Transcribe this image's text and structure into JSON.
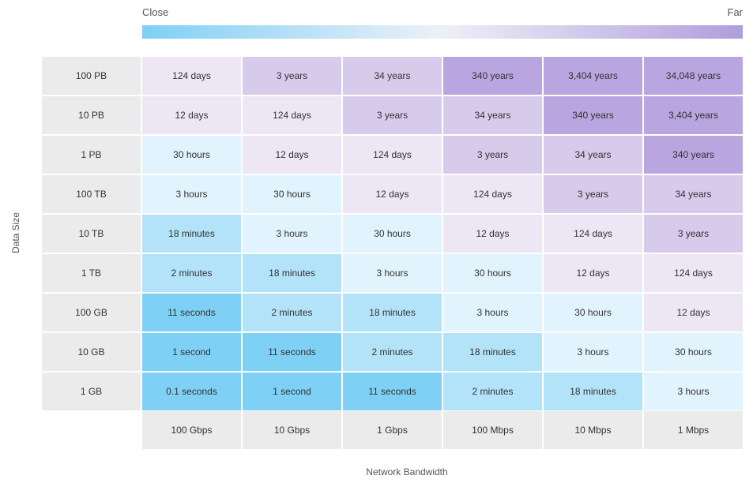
{
  "legend": {
    "low": "Close",
    "high": "Far"
  },
  "y_axis_label": "Data Size",
  "x_axis_label": "Network Bandwidth",
  "table": {
    "row_headers": [
      "100 PB",
      "10 PB",
      "1 PB",
      "100 TB",
      "10 TB",
      "1 TB",
      "100 GB",
      "10 GB",
      "1 GB"
    ],
    "column_headers": [
      "100 Gbps",
      "10 Gbps",
      "1 Gbps",
      "100 Mbps",
      "10 Mbps",
      "1 Mbps"
    ],
    "rows": [
      [
        "124 days",
        "3 years",
        "34 years",
        "340 years",
        "3,404 years",
        "34,048 years"
      ],
      [
        "12 days",
        "124 days",
        "3 years",
        "34 years",
        "340 years",
        "3,404 years"
      ],
      [
        "30 hours",
        "12 days",
        "124 days",
        "3 years",
        "34 years",
        "340 years"
      ],
      [
        "3 hours",
        "30 hours",
        "12 days",
        "124 days",
        "3 years",
        "34 years"
      ],
      [
        "18 minutes",
        "3 hours",
        "30 hours",
        "12 days",
        "124 days",
        "3 years"
      ],
      [
        "2 minutes",
        "18 minutes",
        "3 hours",
        "30 hours",
        "12 days",
        "124 days"
      ],
      [
        "11 seconds",
        "2 minutes",
        "18 minutes",
        "3 hours",
        "30 hours",
        "12 days"
      ],
      [
        "1 second",
        "11 seconds",
        "2 minutes",
        "18 minutes",
        "3 hours",
        "30 hours"
      ],
      [
        "0.1 seconds",
        "1 second",
        "11 seconds",
        "2 minutes",
        "18 minutes",
        "3 hours"
      ]
    ]
  }
}
